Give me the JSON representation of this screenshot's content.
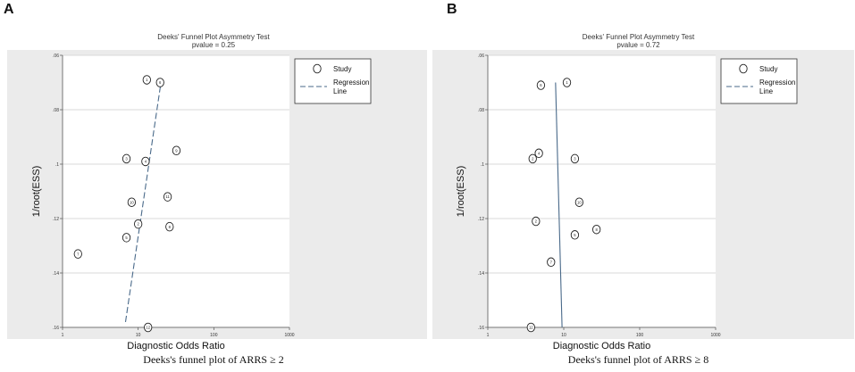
{
  "colors": {
    "plot_bg": "#ffffff",
    "frame_bg": "#ebebeb",
    "gridline": "#d9d9d9",
    "regression": "#4a6a8a",
    "marker": "#222222"
  },
  "chart_data": [
    {
      "panel_label": "A",
      "type": "scatter",
      "title": "Deeks' Funnel Plot Asymmetry Test",
      "subtitle": "pvalue = 0.25",
      "xlabel": "Diagnostic Odds Ratio",
      "ylabel": "1/root(ESS)",
      "caption": "Deeks's funnel plot of ARRS ≥ 2",
      "x_scale": "log",
      "xlim": [
        1,
        1000
      ],
      "x_ticks": [
        1,
        10,
        100,
        1000
      ],
      "x_tick_labels": [
        "1",
        "10",
        "100",
        "1000"
      ],
      "ylim": [
        0.06,
        0.16
      ],
      "y_reversed": true,
      "y_ticks": [
        0.06,
        0.08,
        0.1,
        0.12,
        0.14,
        0.16
      ],
      "y_tick_labels": [
        ".06",
        ".08",
        ".1",
        ".12",
        ".14",
        ".16"
      ],
      "legend": {
        "position": "top-right",
        "study_label": "Study",
        "regression_label_line1": "Regression",
        "regression_label_line2": "Line"
      },
      "points": [
        {
          "label": "1",
          "x": 13.0,
          "y": 0.069
        },
        {
          "label": "6",
          "x": 19.5,
          "y": 0.07
        },
        {
          "label": "9",
          "x": 32.0,
          "y": 0.095
        },
        {
          "label": "3",
          "x": 7.0,
          "y": 0.098
        },
        {
          "label": "4",
          "x": 12.5,
          "y": 0.099
        },
        {
          "label": "11",
          "x": 24.5,
          "y": 0.112
        },
        {
          "label": "10",
          "x": 8.2,
          "y": 0.114
        },
        {
          "label": "2",
          "x": 10.0,
          "y": 0.122
        },
        {
          "label": "8",
          "x": 26.0,
          "y": 0.123
        },
        {
          "label": "5",
          "x": 7.0,
          "y": 0.127
        },
        {
          "label": "7",
          "x": 1.6,
          "y": 0.133
        },
        {
          "label": "12",
          "x": 13.5,
          "y": 0.16
        }
      ],
      "regression": {
        "x1": 6.8,
        "y1": 0.158,
        "x2": 20.0,
        "y2": 0.07
      }
    },
    {
      "panel_label": "B",
      "type": "scatter",
      "title": "Deeks' Funnel Plot Asymmetry Test",
      "subtitle": "pvalue = 0.72",
      "xlabel": "Diagnostic Odds Ratio",
      "ylabel": "1/root(ESS)",
      "caption": "Deeks's funnel plot of ARRS ≥ 8",
      "x_scale": "log",
      "xlim": [
        1,
        1000
      ],
      "x_ticks": [
        1,
        10,
        100,
        1000
      ],
      "x_tick_labels": [
        "1",
        "10",
        "100",
        "1000"
      ],
      "ylim": [
        0.06,
        0.16
      ],
      "y_reversed": true,
      "y_ticks": [
        0.06,
        0.08,
        0.1,
        0.12,
        0.14,
        0.16
      ],
      "y_tick_labels": [
        ".06",
        ".08",
        ".1",
        ".12",
        ".14",
        ".16"
      ],
      "legend": {
        "position": "top-right",
        "study_label": "Study",
        "regression_label_line1": "Regression",
        "regression_label_line2": "Line"
      },
      "points": [
        {
          "label": "6",
          "x": 5.0,
          "y": 0.071
        },
        {
          "label": "1",
          "x": 11.0,
          "y": 0.07
        },
        {
          "label": "4",
          "x": 4.7,
          "y": 0.096
        },
        {
          "label": "2",
          "x": 3.9,
          "y": 0.098
        },
        {
          "label": "3",
          "x": 14.0,
          "y": 0.098
        },
        {
          "label": "10",
          "x": 16.0,
          "y": 0.114
        },
        {
          "label": "2",
          "x": 4.3,
          "y": 0.121
        },
        {
          "label": "8",
          "x": 27.0,
          "y": 0.124
        },
        {
          "label": "5",
          "x": 14.0,
          "y": 0.126
        },
        {
          "label": "7",
          "x": 6.8,
          "y": 0.136
        },
        {
          "label": "12",
          "x": 3.7,
          "y": 0.16
        }
      ],
      "regression": {
        "x1": 9.5,
        "y1": 0.16,
        "x2": 7.8,
        "y2": 0.07
      }
    }
  ]
}
